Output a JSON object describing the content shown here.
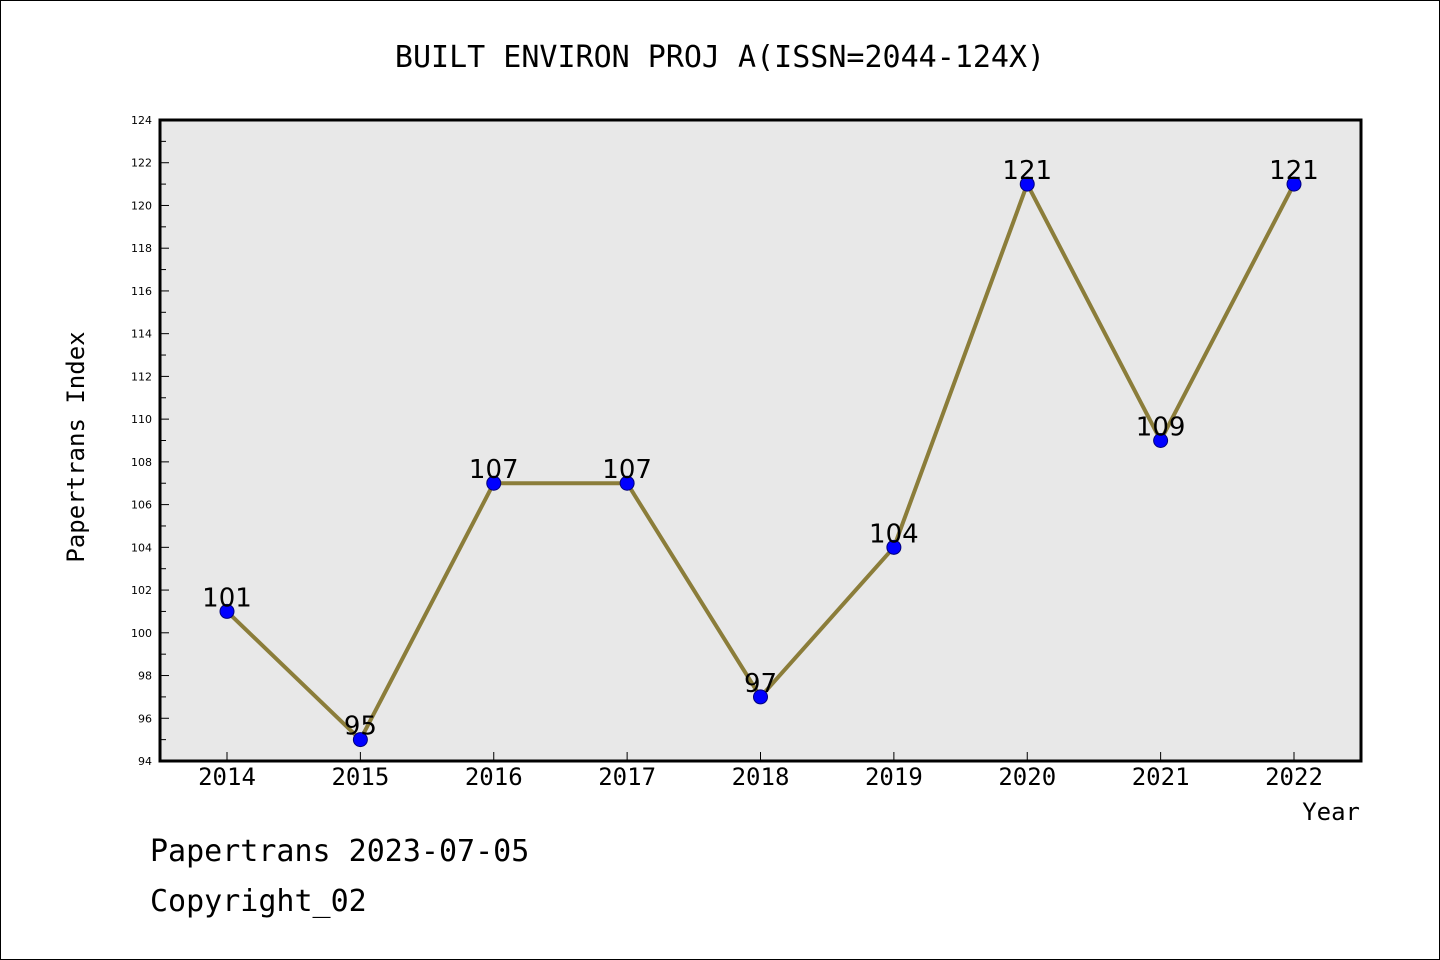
{
  "chart_data": {
    "type": "line",
    "title": "BUILT ENVIRON PROJ A(ISSN=2044-124X)",
    "xlabel": "Year",
    "ylabel": "Papertrans Index",
    "categories": [
      "2014",
      "2015",
      "2016",
      "2017",
      "2018",
      "2019",
      "2020",
      "2021",
      "2022"
    ],
    "series": [
      {
        "values": [
          101,
          95,
          107,
          107,
          97,
          104,
          121,
          109,
          121
        ],
        "data_labels": [
          "101",
          "95",
          "107",
          "107",
          "97",
          "104",
          "121",
          "109",
          "121"
        ],
        "line_color": "#8B7D3A",
        "marker_color": "#0000FF"
      }
    ],
    "ylim": [
      94,
      124
    ],
    "y_ticks": [
      "94",
      "96",
      "98",
      "100",
      "102",
      "104",
      "106",
      "108",
      "110",
      "112",
      "114",
      "116",
      "118",
      "120",
      "122",
      "124"
    ],
    "y_minor_step": 1,
    "grid": false,
    "plot_background": "#E8E8E8"
  },
  "footer": {
    "line1": "Papertrans 2023-07-05",
    "line2": "Copyright_02"
  }
}
